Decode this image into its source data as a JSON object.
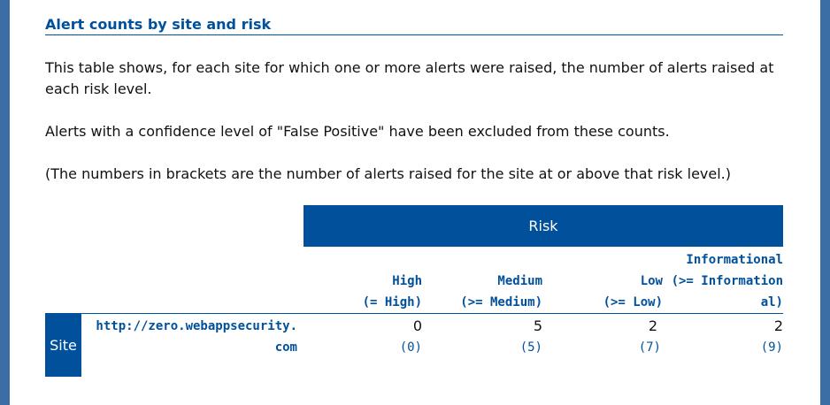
{
  "heading": "Alert counts by site and risk",
  "paragraphs": [
    "This table shows, for each site for which one or more alerts were raised, the number of alerts raised at each risk level.",
    "Alerts with a confidence level of \"False Positive\" have been excluded from these counts.",
    "(The numbers in brackets are the number of alerts raised for the site at or above that risk level.)"
  ],
  "table": {
    "risk_header": "Risk",
    "site_header": "Site",
    "columns": [
      {
        "name": "High",
        "range": "(= High)"
      },
      {
        "name": "Medium",
        "range": "(>= Medium)"
      },
      {
        "name": "Low",
        "range": "(>= Low)"
      },
      {
        "name": "Informational",
        "range_line1": "(>= Information",
        "range_line2": "al)"
      }
    ],
    "rows": [
      {
        "site": "http://zero.webappsecurity.com",
        "counts": [
          "0",
          "5",
          "2",
          "2"
        ],
        "cumulative": [
          "(0)",
          "(5)",
          "(7)",
          "(9)"
        ]
      }
    ]
  }
}
